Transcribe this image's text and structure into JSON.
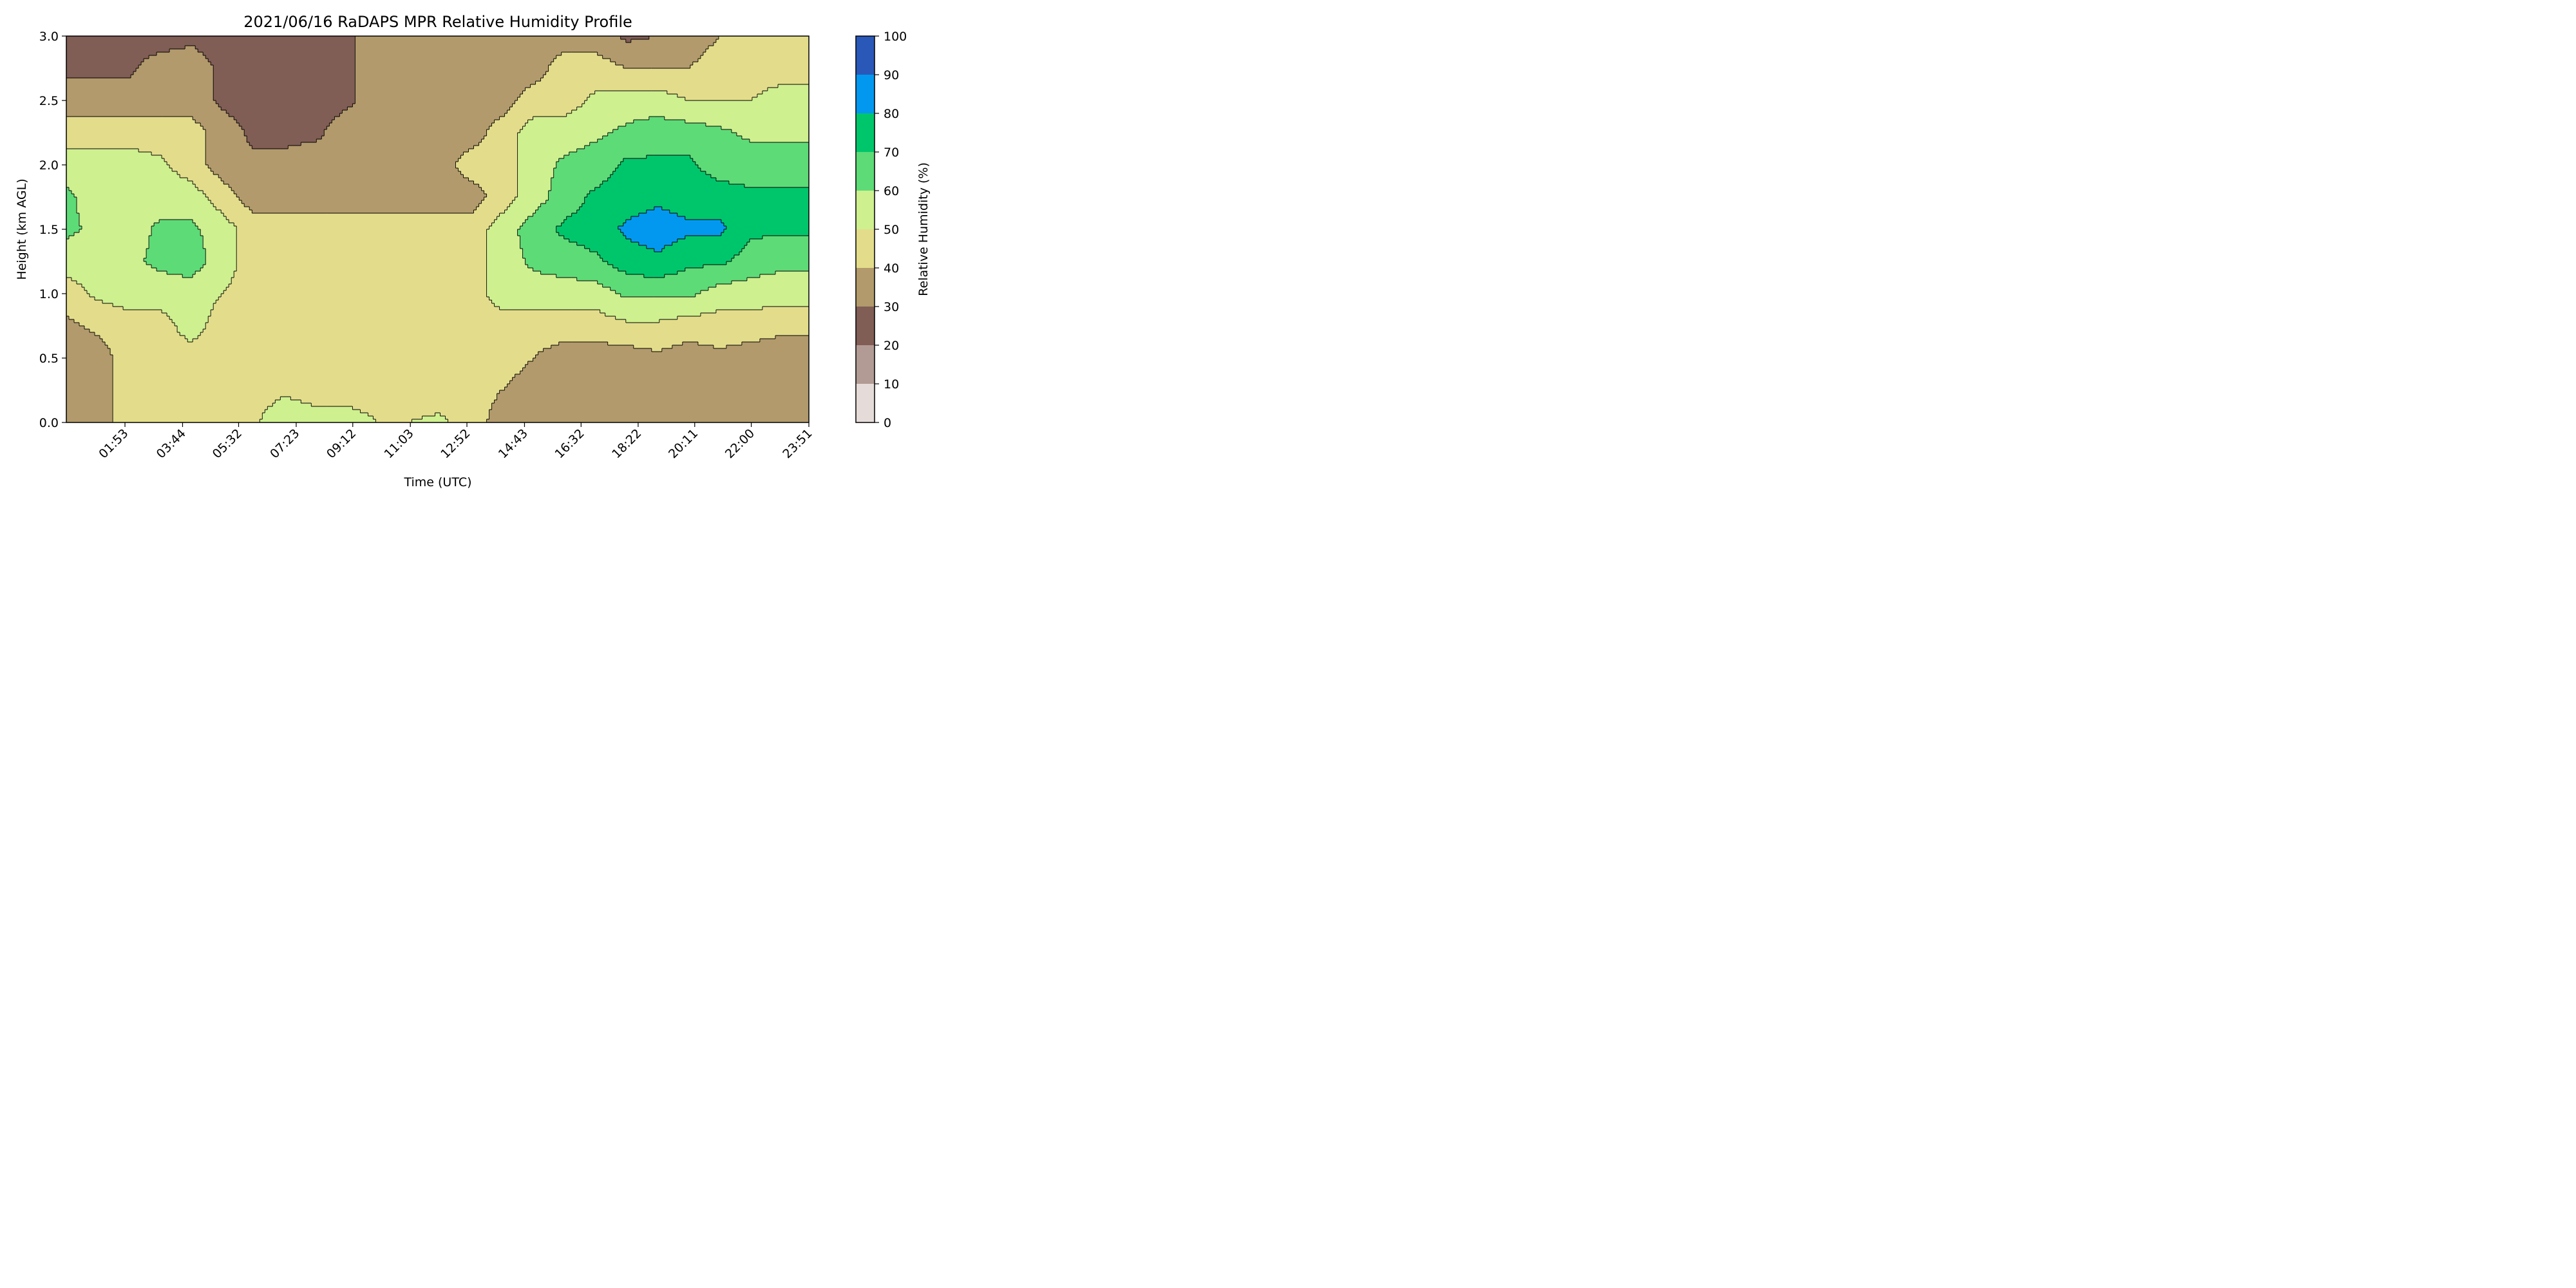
{
  "chart_data": {
    "type": "heatmap",
    "subtype": "filled-contour",
    "title": "2021/06/16 RaDAPS MPR Relative Humidity Profile",
    "xlabel": "Time (UTC)",
    "ylabel": "Height (km AGL)",
    "colorbar_label": "Relative Humidity (%)",
    "x_range": [
      "00:00",
      "23:51"
    ],
    "x_ticks": [
      "01:53",
      "03:44",
      "05:32",
      "07:23",
      "09:12",
      "11:03",
      "12:52",
      "14:43",
      "16:32",
      "18:22",
      "20:11",
      "22:00",
      "23:51"
    ],
    "x_tick_minutes": [
      113,
      224,
      332,
      443,
      552,
      663,
      772,
      883,
      992,
      1102,
      1211,
      1320,
      1431
    ],
    "ylim": [
      0,
      3
    ],
    "y_ticks": [
      "0.0",
      "0.5",
      "1.0",
      "1.5",
      "2.0",
      "2.5",
      "3.0"
    ],
    "colorbar_levels": [
      0,
      10,
      20,
      30,
      40,
      50,
      60,
      70,
      80,
      90,
      100
    ],
    "colorbar_ticks": [
      "0",
      "10",
      "20",
      "30",
      "40",
      "50",
      "60",
      "70",
      "80",
      "90",
      "100"
    ],
    "level_colors": [
      "#e5dcda",
      "#b29b94",
      "#805d55",
      "#b29a6c",
      "#e3dd8b",
      "#cef08f",
      "#5ddb77",
      "#00c66b",
      "#0398f0",
      "#2a58b9"
    ],
    "time_hours": [
      0,
      1,
      2,
      3,
      4,
      5,
      6,
      7,
      8,
      9,
      10,
      11,
      12,
      13,
      14,
      15,
      16,
      17,
      18,
      19,
      20,
      21,
      22,
      23,
      23.85
    ],
    "height_km": [
      0,
      0.25,
      0.5,
      0.75,
      1.0,
      1.25,
      1.5,
      1.75,
      2.0,
      2.25,
      2.5,
      2.75,
      3.0
    ],
    "rh_percent": [
      [
        35,
        35,
        45,
        45,
        45,
        45,
        48,
        58,
        55,
        55,
        50,
        50,
        52,
        45,
        35,
        35,
        35,
        35,
        35,
        33,
        30,
        35,
        35,
        35,
        35
      ],
      [
        35,
        35,
        45,
        45,
        45,
        45,
        45,
        48,
        45,
        45,
        45,
        45,
        45,
        45,
        40,
        35,
        35,
        35,
        35,
        33,
        33,
        35,
        35,
        35,
        35
      ],
      [
        35,
        35,
        45,
        45,
        45,
        45,
        45,
        45,
        45,
        45,
        45,
        45,
        45,
        45,
        45,
        40,
        35,
        35,
        35,
        38,
        35,
        38,
        35,
        35,
        35
      ],
      [
        38,
        42,
        45,
        45,
        55,
        45,
        45,
        45,
        45,
        45,
        45,
        45,
        45,
        45,
        45,
        45,
        45,
        45,
        48,
        48,
        45,
        45,
        45,
        42,
        42
      ],
      [
        45,
        52,
        55,
        55,
        55,
        50,
        45,
        45,
        45,
        45,
        45,
        45,
        45,
        45,
        55,
        55,
        55,
        55,
        62,
        62,
        62,
        55,
        55,
        55,
        55
      ],
      [
        55,
        55,
        58,
        62,
        65,
        55,
        45,
        45,
        45,
        45,
        45,
        45,
        45,
        45,
        55,
        62,
        65,
        68,
        75,
        78,
        72,
        72,
        65,
        62,
        62
      ],
      [
        62,
        58,
        55,
        62,
        62,
        55,
        45,
        45,
        45,
        45,
        45,
        45,
        45,
        45,
        55,
        65,
        72,
        75,
        82,
        85,
        82,
        82,
        72,
        72,
        72
      ],
      [
        62,
        55,
        55,
        55,
        55,
        45,
        35,
        35,
        35,
        35,
        35,
        35,
        35,
        35,
        45,
        55,
        65,
        72,
        75,
        78,
        75,
        75,
        72,
        72,
        72
      ],
      [
        55,
        55,
        55,
        52,
        45,
        35,
        32,
        32,
        35,
        35,
        35,
        35,
        35,
        45,
        45,
        55,
        62,
        65,
        72,
        72,
        72,
        65,
        65,
        65,
        65
      ],
      [
        45,
        45,
        45,
        45,
        45,
        35,
        28,
        28,
        28,
        35,
        35,
        35,
        35,
        35,
        45,
        55,
        55,
        58,
        62,
        65,
        65,
        62,
        58,
        58,
        58
      ],
      [
        35,
        35,
        35,
        35,
        35,
        28,
        25,
        25,
        25,
        28,
        35,
        35,
        35,
        35,
        35,
        45,
        45,
        52,
        55,
        55,
        50,
        50,
        50,
        55,
        55
      ],
      [
        28,
        28,
        28,
        35,
        35,
        28,
        25,
        25,
        25,
        28,
        35,
        35,
        35,
        35,
        35,
        35,
        45,
        45,
        40,
        40,
        40,
        45,
        45,
        45,
        45
      ],
      [
        25,
        25,
        25,
        25,
        28,
        25,
        22,
        22,
        25,
        28,
        35,
        35,
        30,
        30,
        35,
        35,
        35,
        35,
        28,
        30,
        35,
        40,
        45,
        45,
        45
      ]
    ]
  }
}
